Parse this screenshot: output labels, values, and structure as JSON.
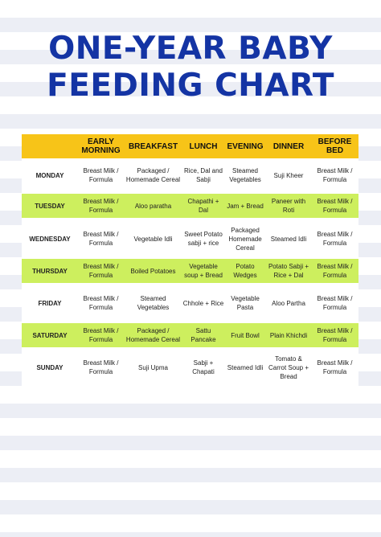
{
  "title": {
    "line1": "ONE-YEAR BABY",
    "line2": "FEEDING CHART"
  },
  "colors": {
    "title": "#1434a4",
    "header": "#f7c418",
    "highlight": "#cdef5e",
    "stripe": "#eceef5"
  },
  "headers": [
    "",
    "EARLY MORNING",
    "BREAKFAST",
    "LUNCH",
    "EVENING",
    "DINNER",
    "BEFORE BED"
  ],
  "rows": [
    {
      "day": "MONDAY",
      "highlight": false,
      "cells": [
        "Breast Milk / Formula",
        "Packaged / Homemade Cereal",
        "Rice, Dal and Sabji",
        "Steamed Vegetables",
        "Suji Kheer",
        "Breast Milk / Formula"
      ]
    },
    {
      "day": "TUESDAY",
      "highlight": true,
      "cells": [
        "Breast Milk / Formula",
        "Aloo paratha",
        "Chapathi + Dal",
        "Jam + Bread",
        "Paneer with Roti",
        "Breast Milk / Formula"
      ]
    },
    {
      "day": "WEDNESDAY",
      "highlight": false,
      "cells": [
        "Breast Milk / Formula",
        "Vegetable Idli",
        "Sweet Potato sabji + rice",
        "Packaged Homemade Cereal",
        "Steamed Idli",
        "Breast Milk / Formula"
      ]
    },
    {
      "day": "THURSDAY",
      "highlight": true,
      "cells": [
        "Breast Milk / Formula",
        "Boiled Potatoes",
        "Vegetable soup + Bread",
        "Potato Wedges",
        "Potato Sabji + Rice + Dal",
        "Breast Milk / Formula"
      ]
    },
    {
      "day": "FRIDAY",
      "highlight": false,
      "cells": [
        "Breast Milk / Formula",
        "Steamed Vegetables",
        "Chhole + Rice",
        "Vegetable Pasta",
        "Aloo Partha",
        "Breast Milk / Formula"
      ]
    },
    {
      "day": "SATURDAY",
      "highlight": true,
      "cells": [
        "Breast Milk / Formula",
        "Packaged / Homemade Cereal",
        "Sattu Pancake",
        "Fruit Bowl",
        "Plain Khichdi",
        "Breast Milk / Formula"
      ]
    },
    {
      "day": "SUNDAY",
      "highlight": false,
      "cells": [
        "Breast Milk / Formula",
        "Suji Upma",
        "Sabji + Chapati",
        "Steamed Idli",
        "Tomato & Carrot Soup + Bread",
        "Breast Milk / Formula"
      ]
    }
  ]
}
